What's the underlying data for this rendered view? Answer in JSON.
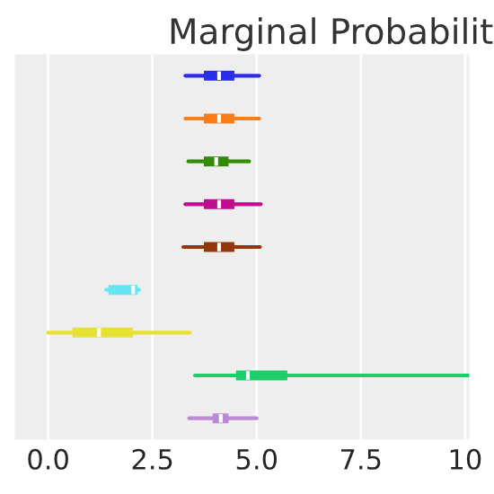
{
  "chart_data": {
    "type": "box",
    "orientation": "horizontal",
    "title": "Marginal Probabilit",
    "categories": [
      null,
      null,
      null,
      null,
      null,
      null,
      null,
      null,
      null
    ],
    "colors": [
      "#2a2eec",
      "#fa7c17",
      "#328c06",
      "#c10c90",
      "#933708",
      "#65e5f3",
      "#e6e135",
      "#1ccd6a",
      "#bd8ad5"
    ],
    "boxes": [
      {
        "low": 3.29,
        "q1": 3.75,
        "median": 4.1,
        "q3": 4.45,
        "high": 5.06
      },
      {
        "low": 3.29,
        "q1": 3.75,
        "median": 4.1,
        "q3": 4.45,
        "high": 5.06
      },
      {
        "low": 3.36,
        "q1": 3.75,
        "median": 4.03,
        "q3": 4.31,
        "high": 4.82
      },
      {
        "low": 3.29,
        "q1": 3.75,
        "median": 4.1,
        "q3": 4.45,
        "high": 5.1
      },
      {
        "low": 3.24,
        "q1": 3.75,
        "median": 4.1,
        "q3": 4.45,
        "high": 5.08
      },
      {
        "low": 1.39,
        "q1": 1.46,
        "median": 2.04,
        "q3": 2.13,
        "high": 2.18
      },
      {
        "low": 0.0,
        "q1": 0.6,
        "median": 1.22,
        "q3": 2.02,
        "high": 3.4
      },
      {
        "low": 3.52,
        "q1": 4.52,
        "median": 4.79,
        "q3": 5.72,
        "high": 10.1
      },
      {
        "low": 3.38,
        "q1": 3.96,
        "median": 4.14,
        "q3": 4.31,
        "high": 5.0
      }
    ],
    "xlim": [
      -0.8,
      10.1
    ],
    "xticks": [
      {
        "value": 0,
        "label": "0.0"
      },
      2.5,
      {
        "value": 5,
        "label": "5.0"
      },
      7.5,
      10
    ],
    "grid": "x",
    "tick_labels": "x"
  }
}
